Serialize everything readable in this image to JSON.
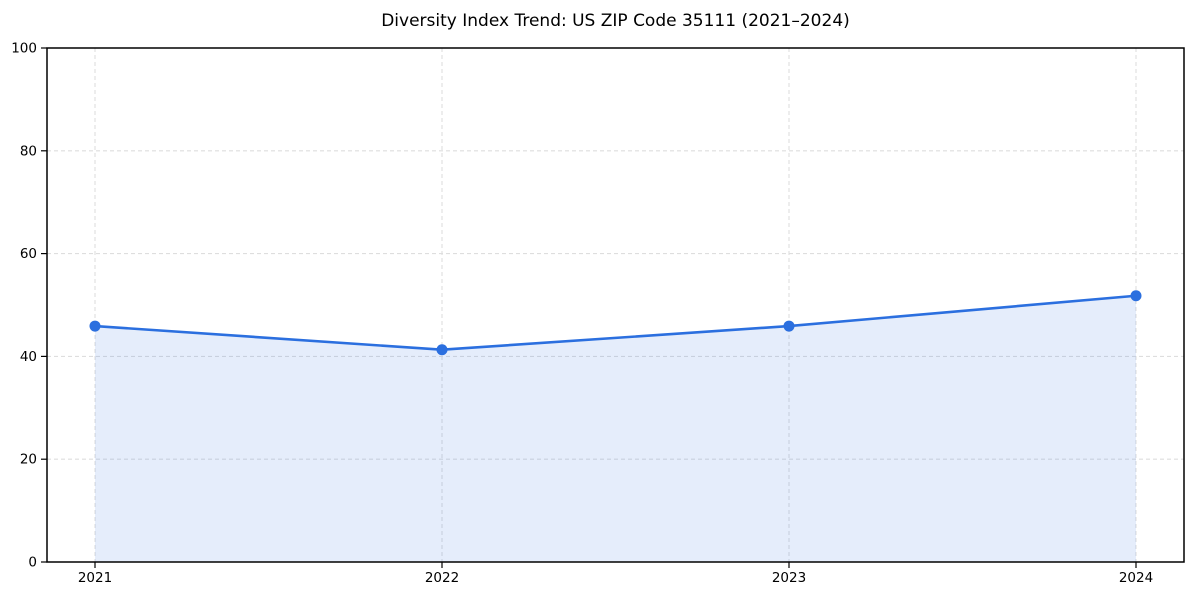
{
  "chart_data": {
    "type": "area",
    "title": "Diversity Index Trend: US ZIP Code 35111 (2021–2024)",
    "categories": [
      "2021",
      "2022",
      "2023",
      "2024"
    ],
    "series": [
      {
        "name": "Diversity Index",
        "values": [
          45.9,
          41.3,
          45.9,
          51.8
        ]
      }
    ],
    "xlabel": "",
    "ylabel": "",
    "ylim": [
      0,
      100
    ],
    "yticks": [
      0,
      20,
      40,
      60,
      80,
      100
    ],
    "grid": true,
    "grid_style": "dashed",
    "legend": null,
    "colors": {
      "line": "#2b6fdf",
      "marker": "#2b6fdf",
      "fill": "rgba(43, 111, 223, 0.12)",
      "grid": "#dedede",
      "spine": "#000000",
      "tick_text": "#000000"
    }
  }
}
